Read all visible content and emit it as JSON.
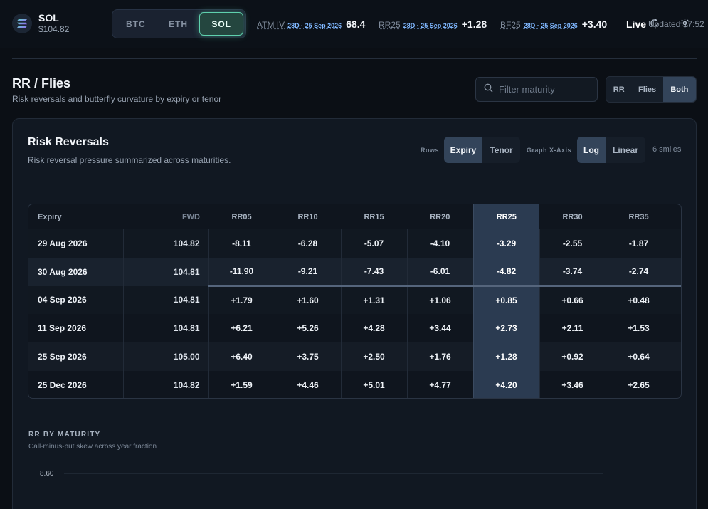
{
  "header": {
    "asset_symbol": "SOL",
    "asset_price": "$104.82",
    "assets": [
      "BTC",
      "ETH",
      "SOL"
    ],
    "active_asset": "SOL",
    "metrics": [
      {
        "label": "ATM IV",
        "sub": "28D · 25 Sep 2026",
        "value": "68.4"
      },
      {
        "label": "RR25",
        "sub": "28D · 25 Sep 2026",
        "value": "+1.28"
      },
      {
        "label": "BF25",
        "sub": "28D · 25 Sep 2026",
        "value": "+3.40"
      }
    ],
    "live_label": "Live",
    "updated_text": "Updated 17:52"
  },
  "page": {
    "title": "RR / Flies",
    "subtitle": "Risk reversals and butterfly curvature by expiry or tenor",
    "search_placeholder": "Filter maturity",
    "search_value": "",
    "modes": [
      "RR",
      "Flies",
      "Both"
    ],
    "active_mode": "Both"
  },
  "card": {
    "title": "Risk Reversals",
    "subtitle": "Risk reversal pressure summarized across maturities.",
    "rows_label": "Rows",
    "rows_options": [
      "Expiry",
      "Tenor"
    ],
    "rows_active": "Expiry",
    "xaxis_label": "Graph X-Axis",
    "xaxis_options": [
      "Log",
      "Linear"
    ],
    "xaxis_active": "Log",
    "smiles_count": "6 smiles"
  },
  "table": {
    "columns": [
      "Expiry",
      "FWD",
      "RR05",
      "RR10",
      "RR15",
      "RR20",
      "RR25",
      "RR30",
      "RR35"
    ],
    "highlight_column": "RR25",
    "rows": [
      [
        "29 Aug 2026",
        "104.82",
        "-8.11",
        "-6.28",
        "-5.07",
        "-4.10",
        "-3.29",
        "-2.55",
        "-1.87"
      ],
      [
        "30 Aug 2026",
        "104.81",
        "-11.90",
        "-9.21",
        "-7.43",
        "-6.01",
        "-4.82",
        "-3.74",
        "-2.74"
      ],
      [
        "04 Sep 2026",
        "104.81",
        "+1.79",
        "+1.60",
        "+1.31",
        "+1.06",
        "+0.85",
        "+0.66",
        "+0.48"
      ],
      [
        "11 Sep 2026",
        "104.81",
        "+6.21",
        "+5.26",
        "+4.28",
        "+3.44",
        "+2.73",
        "+2.11",
        "+1.53"
      ],
      [
        "25 Sep 2026",
        "105.00",
        "+6.40",
        "+3.75",
        "+2.50",
        "+1.76",
        "+1.28",
        "+0.92",
        "+0.64"
      ],
      [
        "25 Dec 2026",
        "104.82",
        "+1.59",
        "+4.46",
        "+5.01",
        "+4.77",
        "+4.20",
        "+3.46",
        "+2.65"
      ]
    ]
  },
  "graph": {
    "title": "RR BY MATURITY",
    "subtitle": "Call-minus-put skew across year fraction",
    "y_tick_top": "8.60"
  },
  "colors": {
    "accent": "#5fd1ad",
    "background": "#0b0f15",
    "card": "#111822",
    "highlight_column": "#2b3b51",
    "date_link": "#7fb7ff"
  },
  "icons": {
    "asset_logo": "solana-logo-icon",
    "search": "search-icon",
    "refresh": "refresh-icon",
    "settings": "gear-icon"
  }
}
